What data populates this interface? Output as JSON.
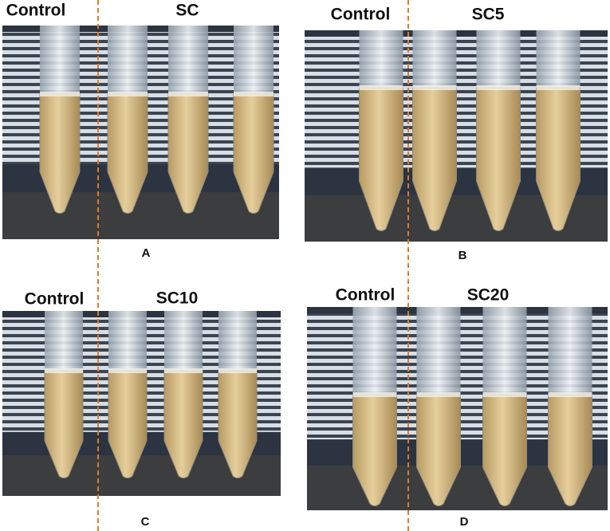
{
  "panels": [
    {
      "letter": "A",
      "control_label": "Control",
      "treatment_label": "SC"
    },
    {
      "letter": "B",
      "control_label": "Control",
      "treatment_label": "SC5"
    },
    {
      "letter": "C",
      "control_label": "Control",
      "treatment_label": "SC10"
    },
    {
      "letter": "D",
      "control_label": "Control",
      "treatment_label": "SC20"
    }
  ]
}
